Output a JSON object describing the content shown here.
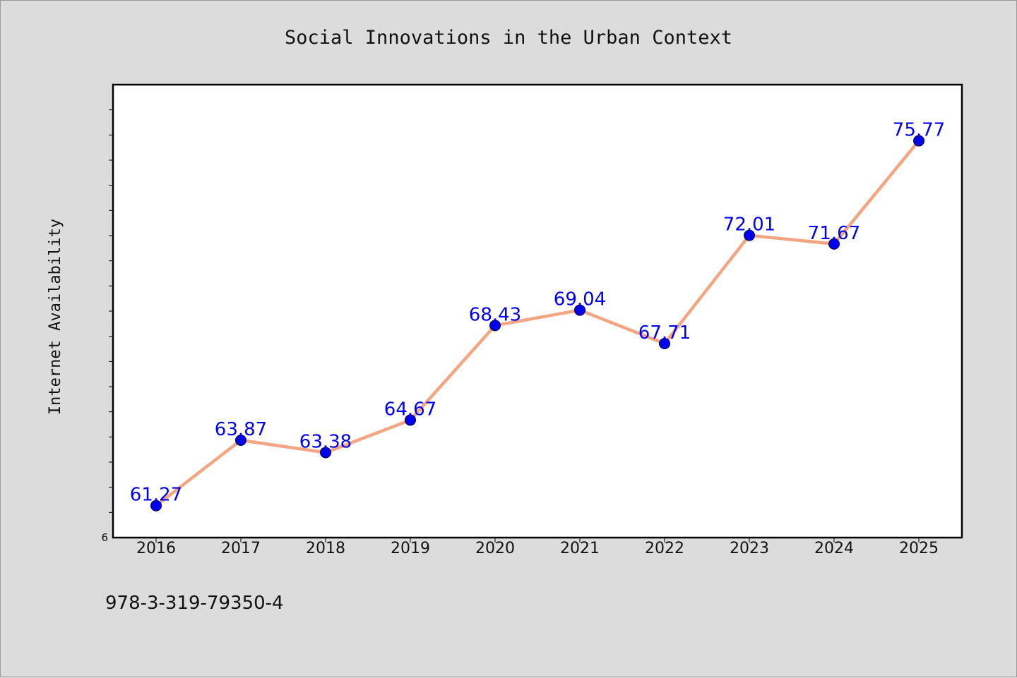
{
  "chart_data": {
    "type": "line",
    "title": "Social Innovations in the Urban Context",
    "xlabel": "",
    "ylabel": "Internet Availability",
    "categories": [
      "2016",
      "2017",
      "2018",
      "2019",
      "2020",
      "2021",
      "2022",
      "2023",
      "2024",
      "2025"
    ],
    "series": [
      {
        "values": [
          61.27,
          63.87,
          63.38,
          64.67,
          68.43,
          69.04,
          67.71,
          72.01,
          71.67,
          75.77
        ],
        "labels": [
          "61.27",
          "63.87",
          "63.38",
          "64.67",
          "68.43",
          "69.04",
          "67.71",
          "72.01",
          "71.67",
          "75.77"
        ]
      }
    ],
    "ylim": [
      60,
      78
    ],
    "y_tick_labels": [
      "6"
    ],
    "grid": false,
    "line_color": "#f4a582",
    "marker_color": "#0000ee",
    "label_color": "#0000ee"
  },
  "footnote": "978-3-319-79350-4"
}
